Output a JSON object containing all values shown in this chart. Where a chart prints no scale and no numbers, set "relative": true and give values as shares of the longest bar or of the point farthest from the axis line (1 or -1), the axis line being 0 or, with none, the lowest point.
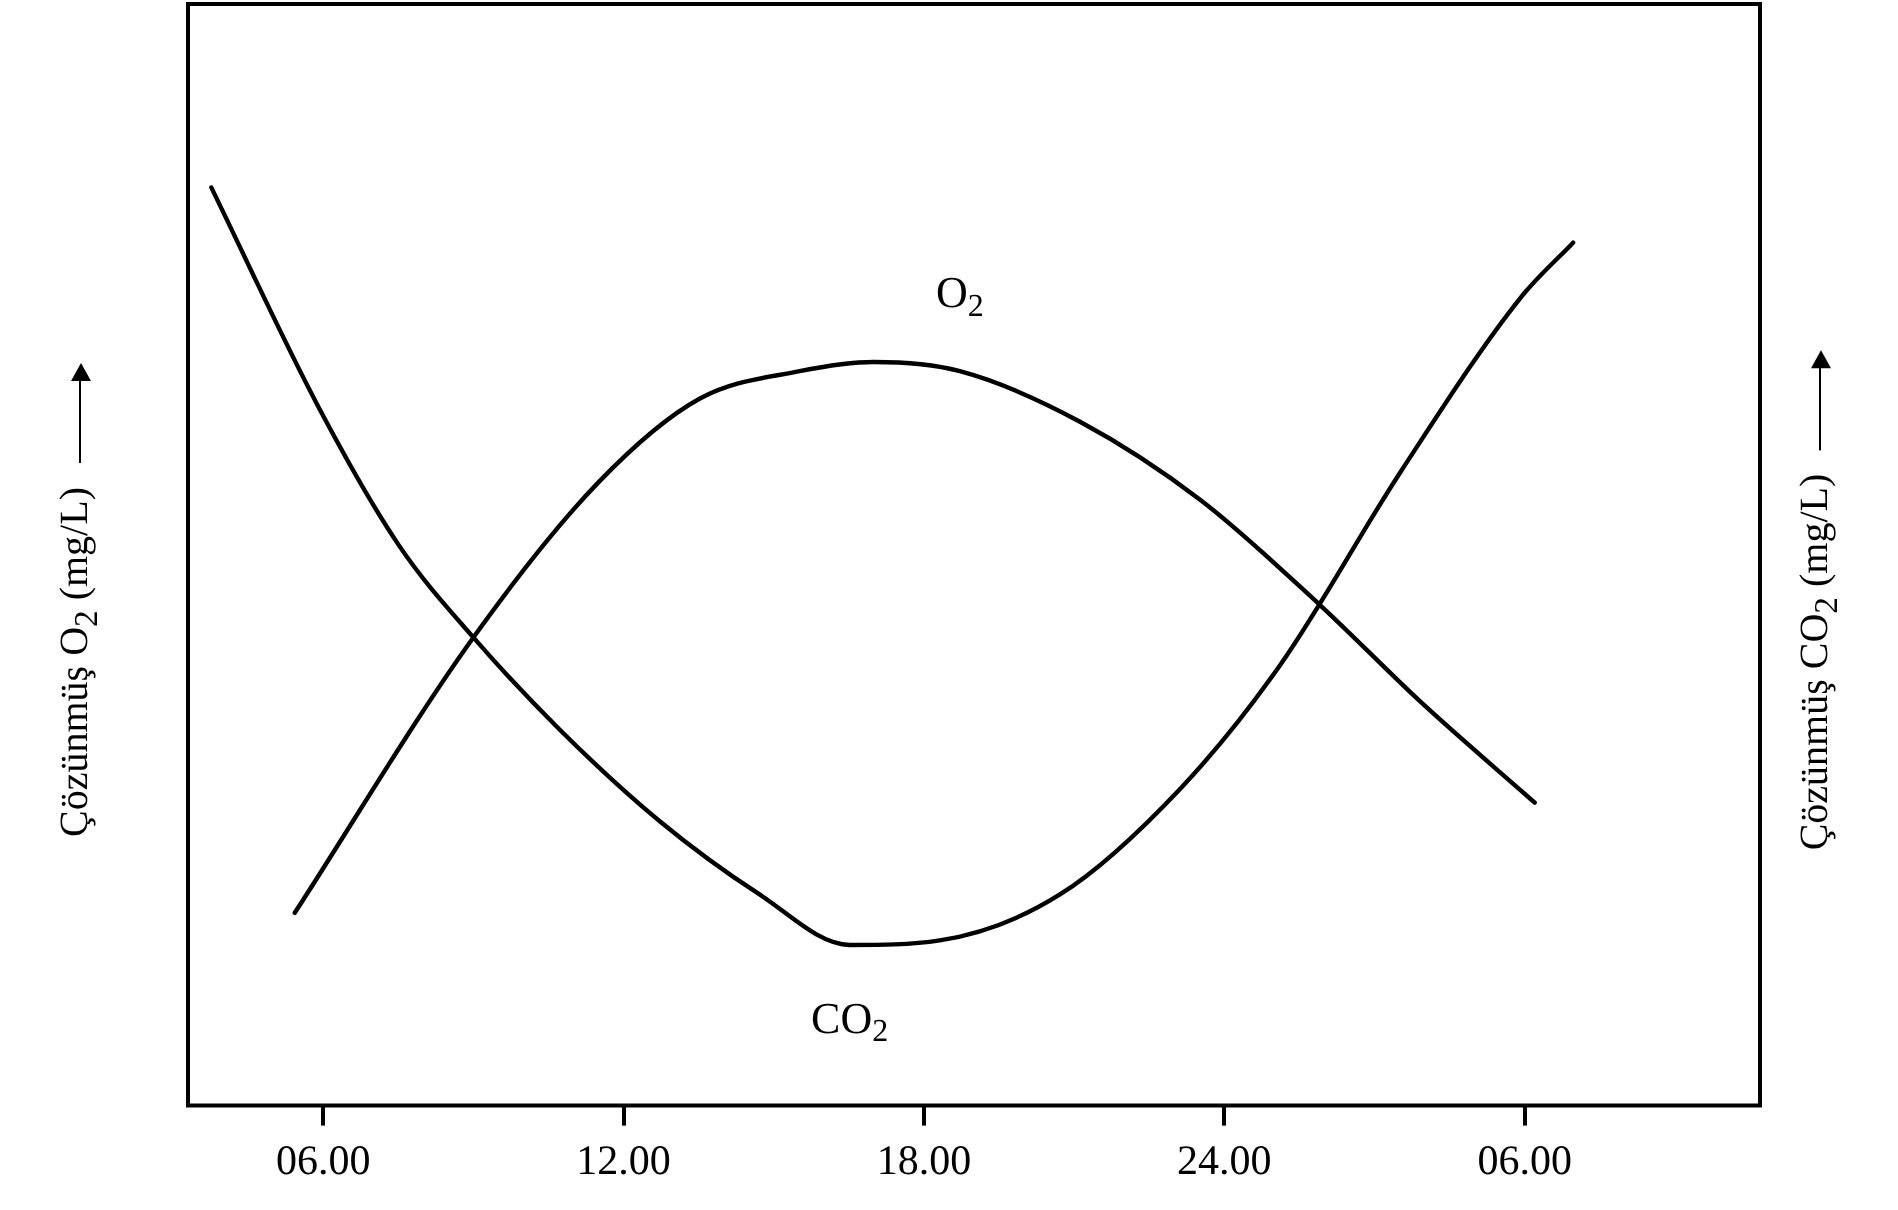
{
  "chart_data": {
    "type": "line",
    "relative": true,
    "ylabel": "Çözünmüş O$_{2}$ (mg/L)",
    "y2label": "Çözünmüş CO$_{2}$ (mg/L)",
    "xlim": [
      "2000-01-01T03:18",
      "2000-01-02T10:42"
    ],
    "xticks": [
      {
        "value": "2000-01-01T06:00",
        "label": "06.00"
      },
      {
        "value": "2000-01-01T12:00",
        "label": "12.00"
      },
      {
        "value": "2000-01-01T18:00",
        "label": "18.00"
      },
      {
        "value": "2000-01-02T00:00",
        "label": "24.00"
      },
      {
        "value": "2000-01-02T06:00",
        "label": "06.00"
      }
    ],
    "tick_labels": "x",
    "grid": false,
    "legend": false,
    "marker": "none",
    "line_style": "solid",
    "series": [
      {
        "name": "O$_{2}$",
        "color": "#000000",
        "x": [
          "2000-01-01T05:26",
          "2000-01-01T09:00",
          "2000-01-01T11:31",
          "2000-01-01T13:31",
          "2000-01-01T15:31",
          "2000-01-01T17:00",
          "2000-01-01T18:43",
          "2000-01-01T21:07",
          "2000-01-01T23:31",
          "2000-01-02T01:55",
          "2000-01-02T03:55",
          "2000-01-02T06:12"
        ],
        "values": [
          0.21,
          0.51,
          0.68,
          0.77,
          0.8,
          0.81,
          0.8,
          0.745,
          0.66,
          0.545,
          0.44,
          0.33
        ]
      },
      {
        "name": "CO$_{2}$",
        "color": "#000000",
        "x": [
          "2000-01-01T03:46",
          "2000-01-01T05:55",
          "2000-01-01T07:31",
          "2000-01-01T09:00",
          "2000-01-01T10:43",
          "2000-01-01T12:43",
          "2000-01-01T14:43",
          "2000-01-01T16:31",
          "2000-01-01T18:19",
          "2000-01-01T20:43",
          "2000-01-01T23:07",
          "2000-01-02T01:07",
          "2000-01-02T03:31",
          "2000-01-02T05:55",
          "2000-01-02T06:58"
        ],
        "values": [
          1.0,
          0.76,
          0.61,
          0.51,
          0.41,
          0.31,
          0.23,
          0.175,
          0.18,
          0.23,
          0.345,
          0.48,
          0.69,
          0.88,
          0.94
        ]
      }
    ]
  }
}
